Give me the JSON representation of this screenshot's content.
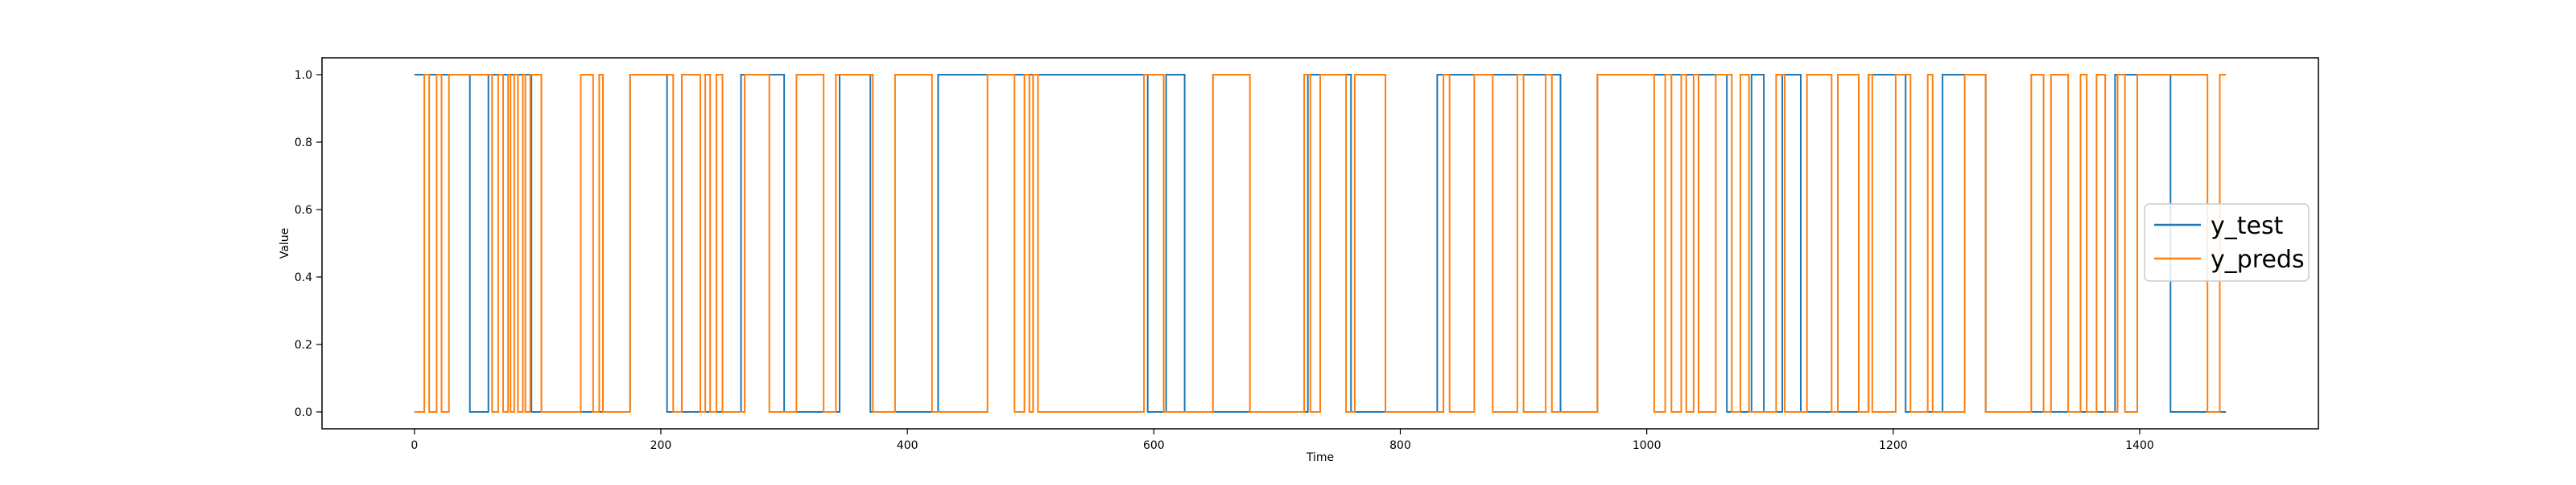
{
  "chart_data": {
    "type": "line",
    "title": "",
    "xlabel": "Time",
    "ylabel": "Value",
    "xlim": [
      -75,
      1545
    ],
    "ylim": [
      -0.05,
      1.05
    ],
    "xticks": [
      0,
      200,
      400,
      600,
      800,
      1000,
      1200,
      1400
    ],
    "yticks": [
      "0.0",
      "0.2",
      "0.4",
      "0.6",
      "0.8",
      "1.0"
    ],
    "grid": false,
    "legend": "center-right",
    "series": [
      {
        "name": "y_test",
        "color": "#1f77b4",
        "style": "step",
        "x_end": 1470,
        "x": [
          0,
          45,
          60,
          95,
          175,
          205,
          265,
          300,
          345,
          370,
          425,
          595,
          610,
          625,
          725,
          760,
          830,
          930,
          960,
          1065,
          1085,
          1095,
          1110,
          1125,
          1180,
          1210,
          1240,
          1275,
          1380,
          1425
        ],
        "values": [
          1,
          0,
          1,
          0,
          1,
          0,
          1,
          0,
          1,
          0,
          1,
          0,
          1,
          0,
          1,
          0,
          1,
          0,
          1,
          0,
          1,
          0,
          1,
          0,
          1,
          0,
          1,
          0,
          1,
          0
        ]
      },
      {
        "name": "y_preds",
        "color": "#ff7f0e",
        "style": "step",
        "x_end": 1470,
        "x": [
          0,
          8,
          12,
          18,
          22,
          28,
          63,
          68,
          72,
          76,
          78,
          81,
          84,
          88,
          90,
          94,
          103,
          135,
          145,
          150,
          153,
          175,
          210,
          217,
          232,
          236,
          240,
          245,
          250,
          268,
          288,
          310,
          332,
          342,
          372,
          390,
          420,
          465,
          487,
          495,
          499,
          502,
          506,
          592,
          608,
          648,
          678,
          722,
          727,
          735,
          756,
          763,
          788,
          835,
          840,
          860,
          875,
          895,
          900,
          918,
          923,
          960,
          1006,
          1015,
          1020,
          1028,
          1032,
          1038,
          1042,
          1056,
          1069,
          1076,
          1083,
          1105,
          1112,
          1130,
          1150,
          1155,
          1172,
          1180,
          1183,
          1202,
          1214,
          1228,
          1232,
          1258,
          1275,
          1312,
          1322,
          1328,
          1342,
          1352,
          1357,
          1365,
          1372,
          1382,
          1388,
          1398,
          1455,
          1465
        ],
        "values": [
          0,
          1,
          0,
          1,
          0,
          1,
          0,
          1,
          0,
          1,
          0,
          1,
          0,
          1,
          0,
          1,
          0,
          1,
          0,
          1,
          0,
          1,
          0,
          1,
          0,
          1,
          0,
          1,
          0,
          1,
          0,
          1,
          0,
          1,
          0,
          1,
          0,
          1,
          0,
          1,
          0,
          1,
          0,
          1,
          0,
          1,
          0,
          1,
          0,
          1,
          0,
          1,
          0,
          1,
          0,
          1,
          0,
          1,
          0,
          1,
          0,
          1,
          0,
          1,
          0,
          1,
          0,
          1,
          0,
          1,
          0,
          1,
          0,
          1,
          0,
          1,
          0,
          1,
          0,
          1,
          0,
          1,
          0,
          1,
          0,
          1,
          0,
          1,
          0,
          1,
          0,
          1,
          0,
          1,
          0,
          1,
          0,
          1,
          0,
          1
        ]
      }
    ]
  }
}
